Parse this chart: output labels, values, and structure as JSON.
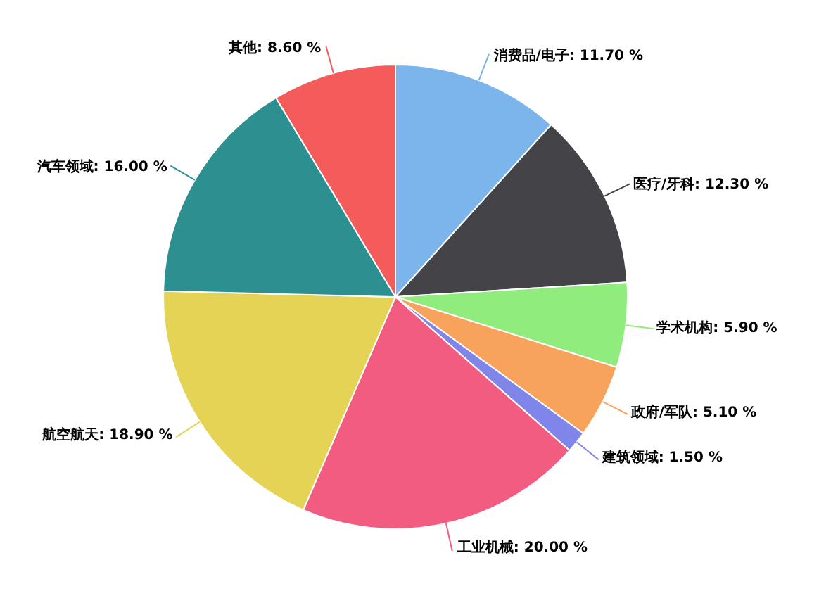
{
  "chart_data": {
    "type": "pie",
    "categories": [
      "消费品/电子",
      "医疗/牙科",
      "学术机构",
      "政府/军队",
      "建筑领域",
      "工业机械",
      "航空航天",
      "汽车领域",
      "其他"
    ],
    "values": [
      11.7,
      12.3,
      5.9,
      5.1,
      1.5,
      20.0,
      18.9,
      16.0,
      8.6
    ],
    "value_labels": [
      "11.70 %",
      "12.30 %",
      "5.90 %",
      "5.10 %",
      "1.50 %",
      "20.00 %",
      "18.90 %",
      "16.00 %",
      "8.60 %"
    ],
    "colors": [
      "#7cb5ec",
      "#434348",
      "#90ed7d",
      "#f7a35c",
      "#8085e9",
      "#f15c80",
      "#e4d354",
      "#2b908f",
      "#f45b5b"
    ],
    "legend": false
  }
}
